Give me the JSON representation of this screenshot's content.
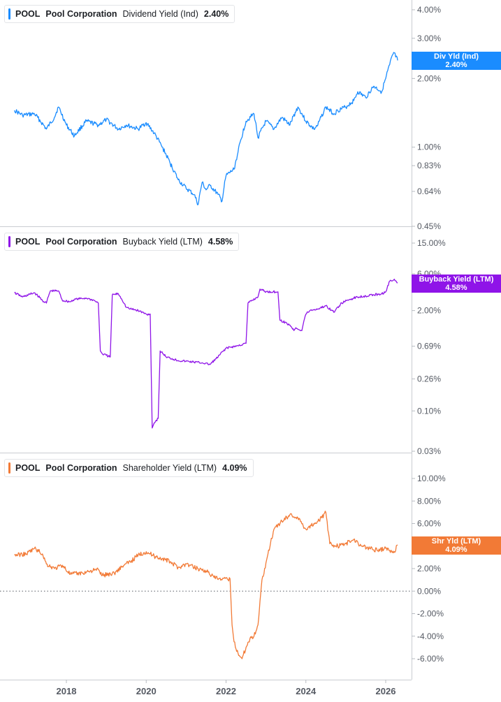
{
  "colors": {
    "dividend": "#1a8cff",
    "buyback": "#8f14e8",
    "shareholder": "#f27a36",
    "grid": "#d9dce0",
    "zero": "#555a63"
  },
  "panels": [
    {
      "ticker": "POOL",
      "company": "Pool Corporation",
      "metric": "Dividend Yield (Ind)",
      "value": "2.40%",
      "flag_line1": "Div Yld (Ind)",
      "flag_line2": "2.40%"
    },
    {
      "ticker": "POOL",
      "company": "Pool Corporation",
      "metric": "Buyback Yield (LTM)",
      "value": "4.58%",
      "flag_line1": "Buyback Yield (LTM)",
      "flag_line2": "4.58%"
    },
    {
      "ticker": "POOL",
      "company": "Pool Corporation",
      "metric": "Shareholder Yield (LTM)",
      "value": "4.09%",
      "flag_line1": "Shr Yld (LTM)",
      "flag_line2": "4.09%"
    }
  ],
  "chart_data": [
    {
      "type": "line",
      "title": "POOL Pool Corporation Dividend Yield (Ind) 2.40%",
      "y_scale": "log",
      "y_ticks": [
        "4.00%",
        "3.00%",
        "2.00%",
        "1.00%",
        "0.83%",
        "0.64%",
        "0.45%"
      ],
      "y_tick_values": [
        4.0,
        3.0,
        2.0,
        1.0,
        0.83,
        0.64,
        0.45
      ],
      "x_ticks": [
        "2018",
        "2020",
        "2022",
        "2024",
        "2026"
      ],
      "x_tick_values": [
        2018,
        2020,
        2022,
        2024,
        2026
      ],
      "series": [
        {
          "name": "Dividend Yield (Ind)",
          "color": "#1a8cff",
          "x": [
            2016.7,
            2016.9,
            2017.2,
            2017.5,
            2017.7,
            2017.8,
            2018.0,
            2018.2,
            2018.5,
            2018.8,
            2019.0,
            2019.3,
            2019.5,
            2019.8,
            2020.0,
            2020.2,
            2020.4,
            2020.6,
            2020.8,
            2021.0,
            2021.2,
            2021.3,
            2021.4,
            2021.5,
            2021.6,
            2021.8,
            2021.9,
            2022.0,
            2022.2,
            2022.3,
            2022.5,
            2022.7,
            2022.8,
            2023.0,
            2023.2,
            2023.4,
            2023.6,
            2023.8,
            2024.0,
            2024.2,
            2024.3,
            2024.5,
            2024.7,
            2024.8,
            2025.0,
            2025.2,
            2025.3,
            2025.5,
            2025.7,
            2025.9,
            2026.0,
            2026.1,
            2026.2,
            2026.3
          ],
          "y": [
            1.45,
            1.38,
            1.4,
            1.2,
            1.35,
            1.5,
            1.25,
            1.12,
            1.3,
            1.25,
            1.32,
            1.2,
            1.25,
            1.2,
            1.28,
            1.15,
            1.0,
            0.85,
            0.72,
            0.66,
            0.62,
            0.56,
            0.7,
            0.65,
            0.68,
            0.62,
            0.58,
            0.75,
            0.8,
            0.95,
            1.3,
            1.4,
            1.1,
            1.3,
            1.2,
            1.35,
            1.25,
            1.5,
            1.3,
            1.2,
            1.25,
            1.5,
            1.4,
            1.45,
            1.5,
            1.6,
            1.75,
            1.65,
            1.85,
            1.75,
            2.0,
            2.3,
            2.6,
            2.4
          ]
        }
      ]
    },
    {
      "type": "line",
      "title": "POOL Pool Corporation Buyback Yield (LTM) 4.58%",
      "y_scale": "log",
      "y_ticks": [
        "15.00%",
        "6.00%",
        "2.00%",
        "0.69%",
        "0.26%",
        "0.10%",
        "0.03%"
      ],
      "y_tick_values": [
        15.0,
        6.0,
        2.0,
        0.69,
        0.26,
        0.1,
        0.03
      ],
      "x_ticks": [
        "2018",
        "2020",
        "2022",
        "2024",
        "2026"
      ],
      "x_tick_values": [
        2018,
        2020,
        2022,
        2024,
        2026
      ],
      "series": [
        {
          "name": "Buyback Yield (LTM)",
          "color": "#8f14e8",
          "x": [
            2016.7,
            2016.9,
            2017.2,
            2017.4,
            2017.5,
            2017.6,
            2017.8,
            2017.9,
            2018.1,
            2018.2,
            2018.5,
            2018.7,
            2018.8,
            2018.85,
            2018.9,
            2019.1,
            2019.15,
            2019.3,
            2019.5,
            2019.6,
            2019.8,
            2020.0,
            2020.1,
            2020.15,
            2020.2,
            2020.3,
            2020.35,
            2020.5,
            2020.8,
            2021.0,
            2021.2,
            2021.4,
            2021.6,
            2021.8,
            2022.0,
            2022.3,
            2022.5,
            2022.55,
            2022.8,
            2022.85,
            2023.0,
            2023.3,
            2023.35,
            2023.6,
            2023.7,
            2023.75,
            2023.9,
            2024.0,
            2024.1,
            2024.3,
            2024.5,
            2024.7,
            2024.9,
            2025.1,
            2025.3,
            2025.5,
            2025.7,
            2025.9,
            2026.0,
            2026.1,
            2026.2,
            2026.3
          ],
          "y": [
            3.4,
            3.0,
            3.4,
            2.7,
            2.5,
            3.6,
            3.6,
            2.7,
            2.6,
            2.8,
            2.9,
            2.7,
            2.5,
            0.6,
            0.55,
            0.5,
            3.2,
            3.3,
            2.2,
            2.1,
            2.0,
            1.8,
            1.8,
            0.06,
            0.07,
            0.08,
            0.6,
            0.5,
            0.45,
            0.44,
            0.43,
            0.42,
            0.4,
            0.5,
            0.65,
            0.7,
            0.75,
            2.5,
            3.0,
            3.8,
            3.5,
            3.5,
            1.5,
            1.3,
            1.1,
            1.2,
            1.1,
            1.8,
            2.0,
            2.1,
            2.3,
            1.9,
            2.5,
            2.8,
            3.0,
            3.1,
            3.2,
            3.3,
            3.5,
            4.8,
            5.0,
            4.6
          ]
        }
      ]
    },
    {
      "type": "line",
      "title": "POOL Pool Corporation Shareholder Yield (LTM) 4.09%",
      "y_scale": "linear",
      "y_ticks": [
        "10.00%",
        "8.00%",
        "6.00%",
        "4.00%",
        "2.00%",
        "0.00%",
        "-2.00%",
        "-4.00%",
        "-6.00%"
      ],
      "y_tick_values": [
        10,
        8,
        6,
        4,
        2,
        0,
        -2,
        -4,
        -6
      ],
      "x_ticks": [
        "2018",
        "2020",
        "2022",
        "2024",
        "2026"
      ],
      "x_tick_values": [
        2018,
        2020,
        2022,
        2024,
        2026
      ],
      "series": [
        {
          "name": "Shareholder Yield (LTM)",
          "color": "#f27a36",
          "x": [
            2016.7,
            2017.0,
            2017.2,
            2017.4,
            2017.5,
            2017.7,
            2017.9,
            2018.1,
            2018.4,
            2018.6,
            2018.8,
            2018.9,
            2019.2,
            2019.4,
            2019.6,
            2019.8,
            2020.0,
            2020.2,
            2020.4,
            2020.6,
            2020.8,
            2021.0,
            2021.3,
            2021.5,
            2021.7,
            2021.9,
            2022.1,
            2022.15,
            2022.2,
            2022.3,
            2022.4,
            2022.5,
            2022.6,
            2022.7,
            2022.8,
            2022.9,
            2023.0,
            2023.05,
            2023.2,
            2023.4,
            2023.6,
            2023.8,
            2024.0,
            2024.2,
            2024.4,
            2024.5,
            2024.6,
            2024.8,
            2025.0,
            2025.2,
            2025.4,
            2025.6,
            2025.8,
            2026.0,
            2026.2,
            2026.3
          ],
          "y": [
            3.2,
            3.3,
            3.8,
            3.3,
            2.4,
            2.0,
            2.3,
            1.5,
            1.6,
            1.8,
            1.9,
            1.4,
            1.6,
            2.2,
            2.6,
            3.2,
            3.5,
            3.1,
            2.9,
            2.6,
            2.1,
            2.4,
            2.0,
            1.8,
            1.2,
            1.0,
            1.1,
            -3.0,
            -4.5,
            -5.5,
            -6.0,
            -5.0,
            -4.2,
            -4.0,
            -3.0,
            1.0,
            2.5,
            3.3,
            5.5,
            6.2,
            6.8,
            6.5,
            5.5,
            6.0,
            6.5,
            7.0,
            4.2,
            4.0,
            4.2,
            4.6,
            4.0,
            3.8,
            3.6,
            3.8,
            3.4,
            4.09
          ]
        }
      ]
    }
  ]
}
